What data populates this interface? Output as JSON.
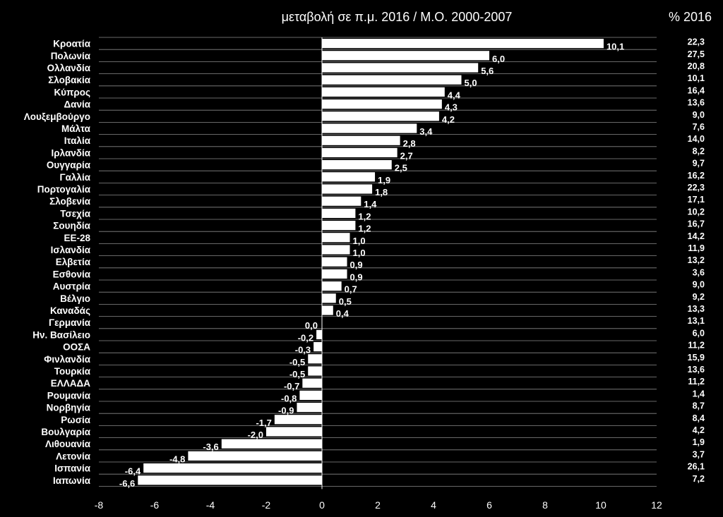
{
  "chart_data": {
    "type": "bar",
    "orientation": "horizontal",
    "title": "μεταβολή σε π.μ. 2016 / Μ.Ο. 2000-2007",
    "right_header": "% 2016",
    "xlim": [
      -8,
      12
    ],
    "xticks": [
      "-8",
      "-6",
      "-4",
      "-2",
      "0",
      "2",
      "4",
      "6",
      "8",
      "10",
      "12"
    ],
    "grid": "horizontal",
    "bar_color": "#ffffff",
    "background": "#000000",
    "categories": [
      "Κροατία",
      "Πολωνία",
      "Ολλανδία",
      "Σλοβακία",
      "Κύπρος",
      "Δανία",
      "Λουξεμβούργο",
      "Μάλτα",
      "Ιταλία",
      "Ιρλανδία",
      "Ουγγαρία",
      "Γαλλία",
      "Πορτογαλία",
      "Σλοβενία",
      "Τσεχία",
      "Σουηδία",
      "ΕΕ-28",
      "Ισλανδία",
      "Ελβετία",
      "Εσθονία",
      "Αυστρία",
      "Βέλγιο",
      "Καναδάς",
      "Γερμανία",
      "Ην. Βασίλειο",
      "ΟΟΣΑ",
      "Φινλανδία",
      "Τουρκία",
      "ΕΛΛΑΔΑ",
      "Ρουμανία",
      "Νορβηγία",
      "Ρωσία",
      "Βουλγαρία",
      "Λιθουανία",
      "Λετονία",
      "Ισπανία",
      "Ιαπωνία"
    ],
    "values": [
      10.1,
      6.0,
      5.6,
      5.0,
      4.4,
      4.3,
      4.2,
      3.4,
      2.8,
      2.7,
      2.5,
      1.9,
      1.8,
      1.4,
      1.2,
      1.2,
      1.0,
      1.0,
      0.9,
      0.9,
      0.7,
      0.5,
      0.4,
      0.0,
      -0.2,
      -0.3,
      -0.5,
      -0.5,
      -0.7,
      -0.8,
      -0.9,
      -1.7,
      -2.0,
      -3.6,
      -4.8,
      -6.4,
      -6.6
    ],
    "value_labels": [
      "10,1",
      "6,0",
      "5,6",
      "5,0",
      "4,4",
      "4,3",
      "4,2",
      "3,4",
      "2,8",
      "2,7",
      "2,5",
      "1,9",
      "1,8",
      "1,4",
      "1,2",
      "1,2",
      "1,0",
      "1,0",
      "0,9",
      "0,9",
      "0,7",
      "0,5",
      "0,4",
      "0,0",
      "-0,2",
      "-0,3",
      "-0,5",
      "-0,5",
      "-0,7",
      "-0,8",
      "-0,9",
      "-1,7",
      "-2,0",
      "-3,6",
      "-4,8",
      "-6,4",
      "-6,6"
    ],
    "right_values": [
      "22,3",
      "27,5",
      "20,8",
      "10,1",
      "16,4",
      "13,6",
      "9,0",
      "7,6",
      "14,0",
      "8,2",
      "9,7",
      "16,2",
      "22,3",
      "17,1",
      "10,2",
      "16,7",
      "14,2",
      "11,9",
      "13,2",
      "3,6",
      "9,0",
      "9,2",
      "13,3",
      "13,1",
      "6,0",
      "11,2",
      "15,9",
      "13,6",
      "11,2",
      "1,4",
      "8,7",
      "8,4",
      "4,2",
      "1,9",
      "3,7",
      "26,1",
      "7,2"
    ]
  }
}
